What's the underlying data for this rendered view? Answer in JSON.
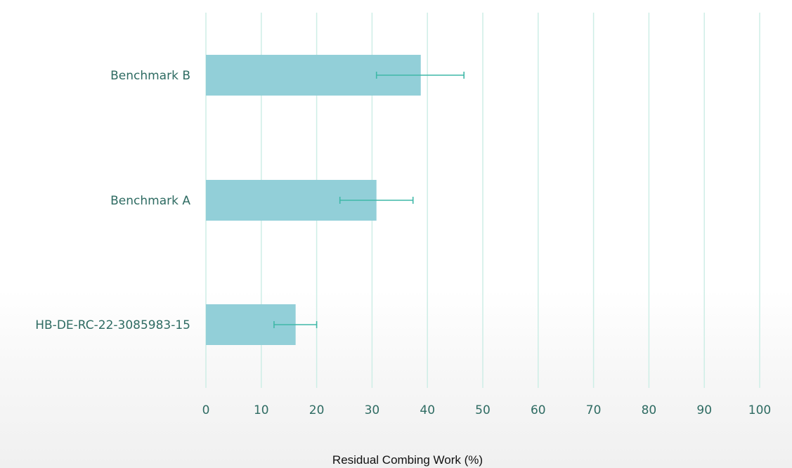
{
  "chart_data": {
    "type": "bar",
    "orientation": "horizontal",
    "categories": [
      "Benchmark B",
      "Benchmark A",
      "HB-DE-RC-22-3085983-15"
    ],
    "values": [
      38.8,
      30.8,
      16.2
    ],
    "error_low": [
      30.8,
      24.2,
      12.3
    ],
    "error_high": [
      46.6,
      37.4,
      20.0
    ],
    "xlabel": "Residual Combing Work (%)",
    "xlim": [
      0,
      100
    ],
    "xticks": [
      0,
      10,
      20,
      30,
      40,
      50,
      60,
      70,
      80,
      90,
      100
    ],
    "grid": "vertical",
    "legend": "none",
    "colors": {
      "bar": "#92cfd8",
      "error_bar": "#3fb8a8",
      "gridline": "#cdeee6",
      "label_text": "#2e6b62"
    }
  }
}
